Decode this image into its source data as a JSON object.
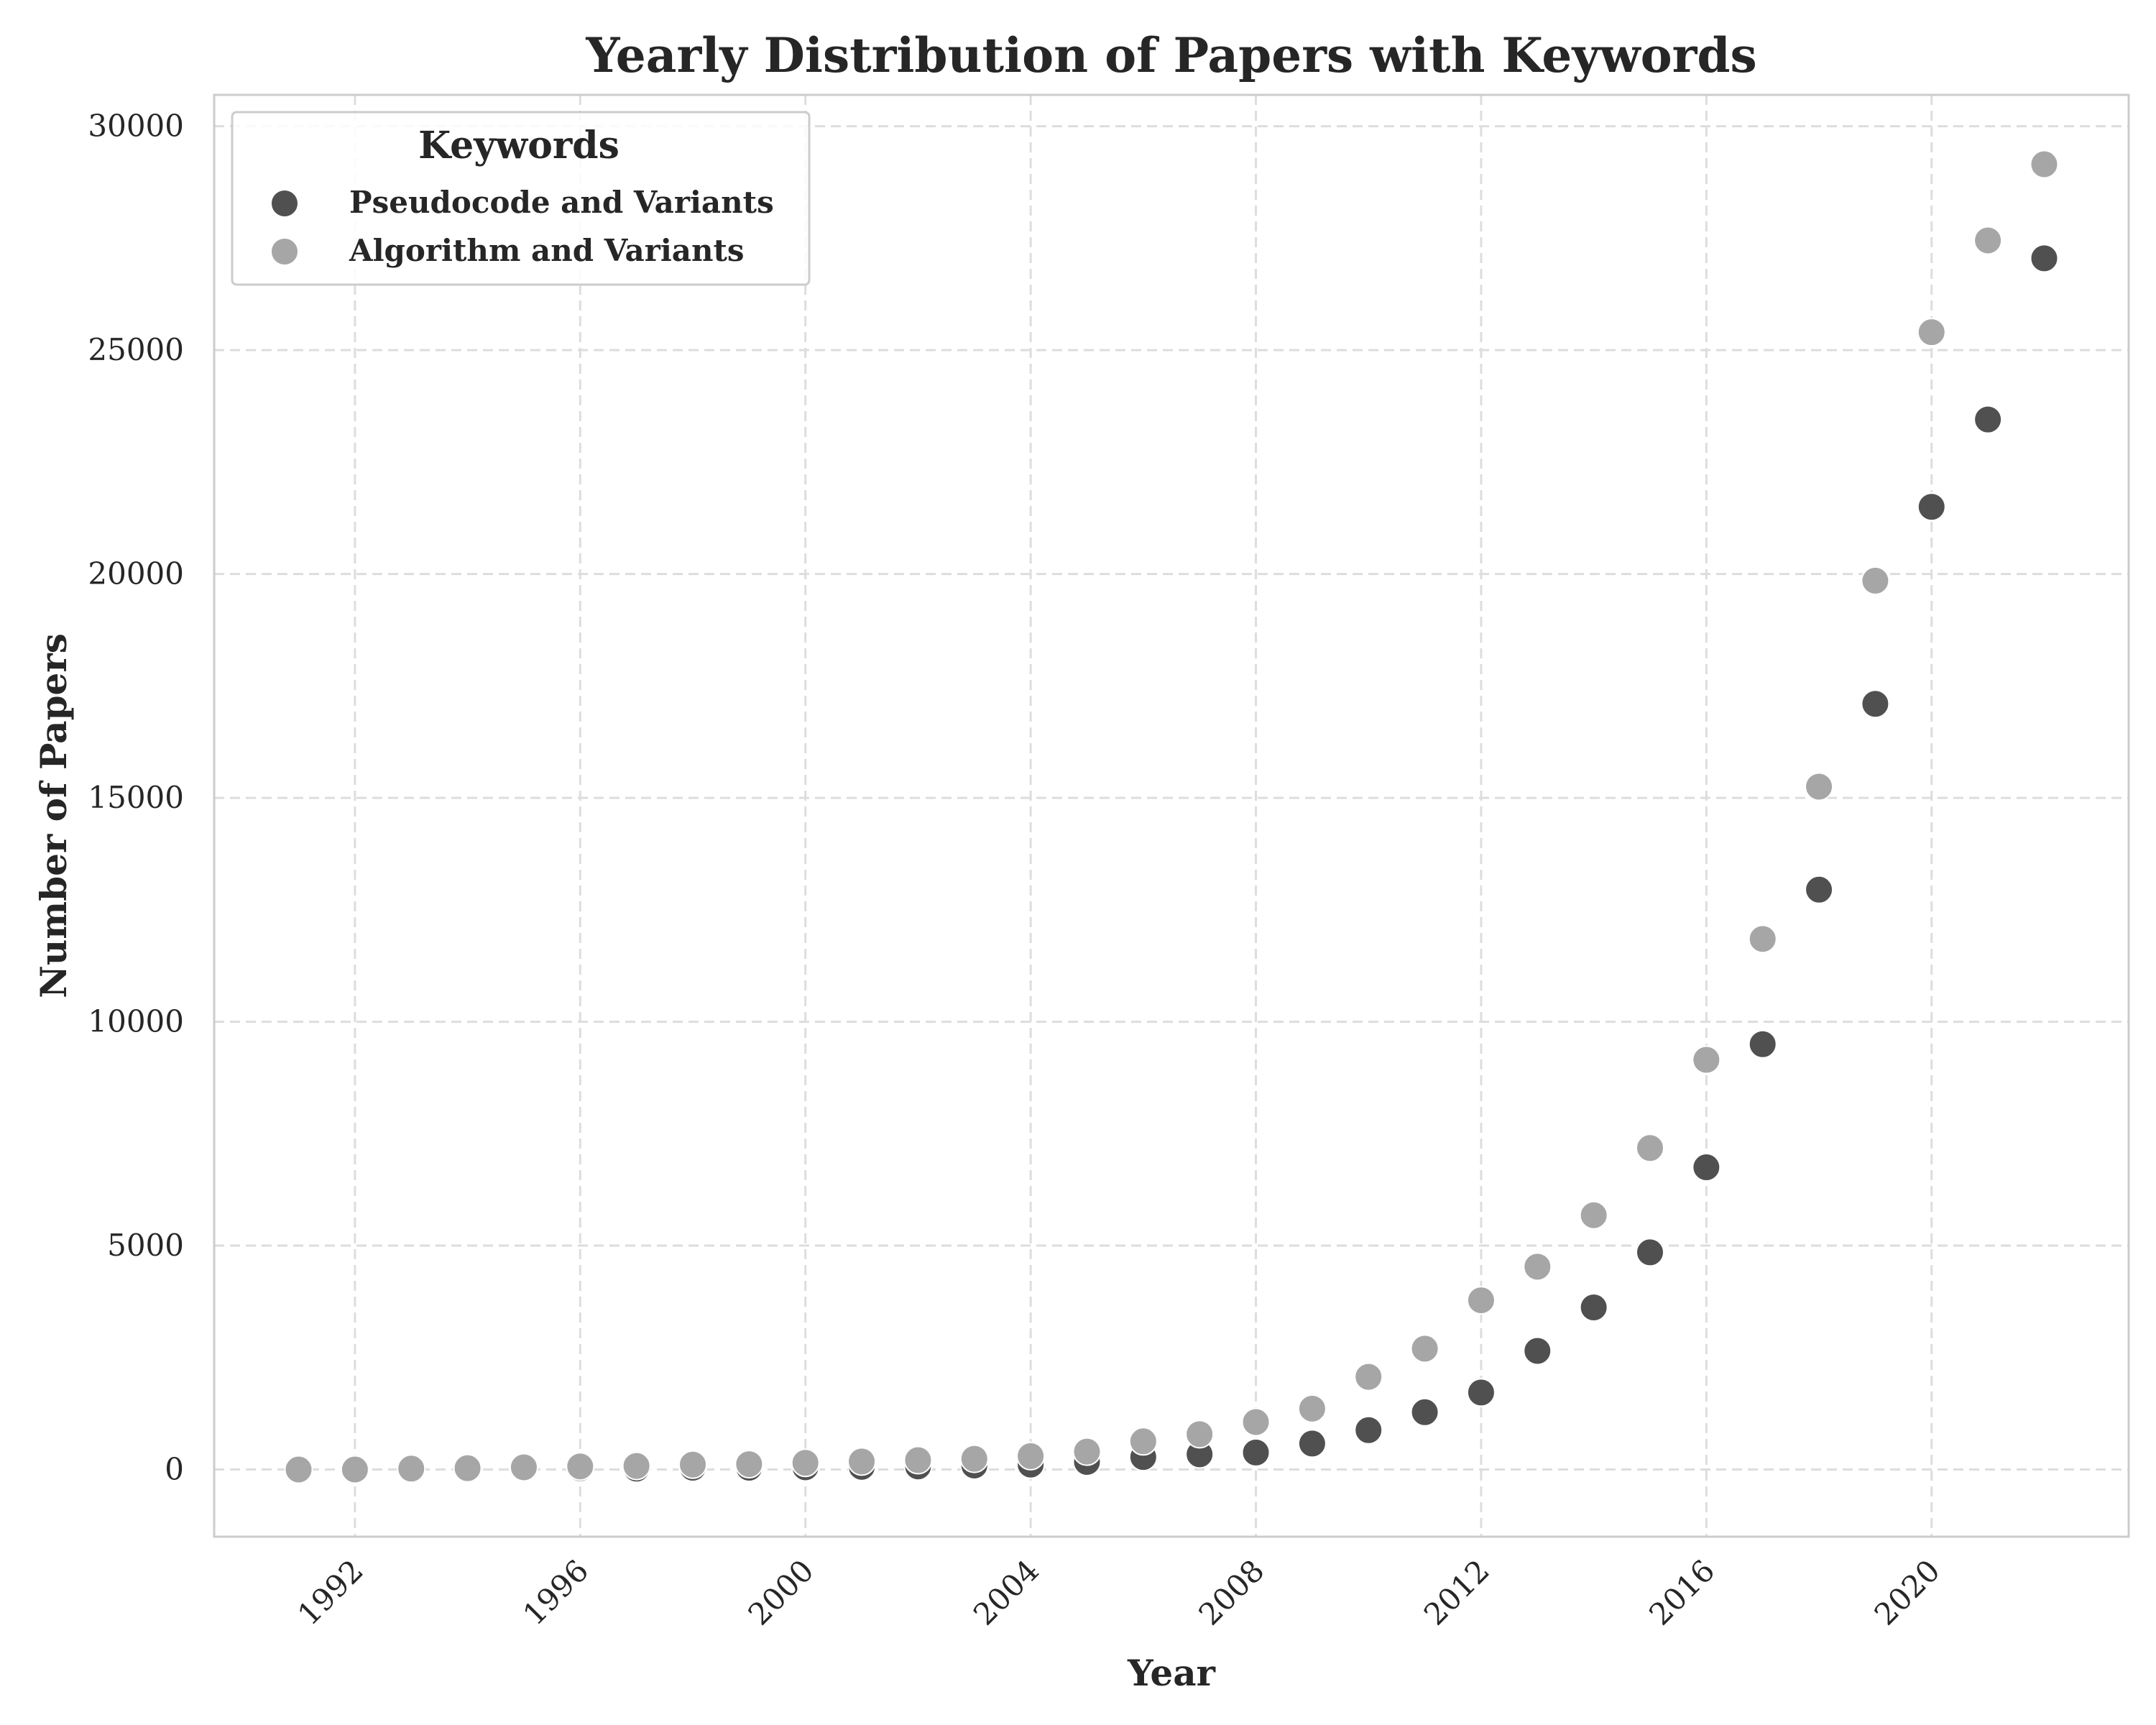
{
  "chart_data": {
    "type": "scatter",
    "title": "Yearly Distribution of Papers with Keywords",
    "xlabel": "Year",
    "ylabel": "Number of Papers",
    "xlim": [
      1989.5,
      2023.5
    ],
    "ylim": [
      -1500,
      30700
    ],
    "xticks": [
      1992,
      1996,
      2000,
      2004,
      2008,
      2012,
      2016,
      2020
    ],
    "yticks": [
      0,
      5000,
      10000,
      15000,
      20000,
      25000,
      30000
    ],
    "grid": true,
    "legend": {
      "title": "Keywords",
      "placement": "top-left"
    },
    "series": [
      {
        "name": "Pseudocode and Variants",
        "color": "#505050",
        "x": [
          1991,
          1992,
          1993,
          1994,
          1995,
          1996,
          1997,
          1998,
          1999,
          2000,
          2001,
          2002,
          2003,
          2004,
          2005,
          2006,
          2007,
          2008,
          2009,
          2010,
          2011,
          2012,
          2013,
          2014,
          2015,
          2016,
          2017,
          2018,
          2019,
          2020,
          2021,
          2022
        ],
        "y": [
          0,
          0,
          10,
          20,
          20,
          30,
          20,
          40,
          40,
          50,
          60,
          70,
          90,
          110,
          170,
          280,
          340,
          380,
          580,
          880,
          1280,
          1720,
          2650,
          3620,
          4850,
          6750,
          9500,
          12950,
          17100,
          21500,
          23450,
          27050
        ]
      },
      {
        "name": "Algorithm and Variants",
        "color": "#a6a6a6",
        "x": [
          1991,
          1992,
          1993,
          1994,
          1995,
          1996,
          1997,
          1998,
          1999,
          2000,
          2001,
          2002,
          2003,
          2004,
          2005,
          2006,
          2007,
          2008,
          2009,
          2010,
          2011,
          2012,
          2013,
          2014,
          2015,
          2016,
          2017,
          2018,
          2019,
          2020,
          2021,
          2022
        ],
        "y": [
          0,
          0,
          20,
          30,
          50,
          70,
          80,
          110,
          120,
          150,
          180,
          210,
          240,
          300,
          400,
          630,
          790,
          1060,
          1360,
          2070,
          2700,
          3780,
          4530,
          5680,
          7180,
          9150,
          11850,
          15250,
          19850,
          25400,
          27450,
          29150
        ]
      }
    ]
  }
}
